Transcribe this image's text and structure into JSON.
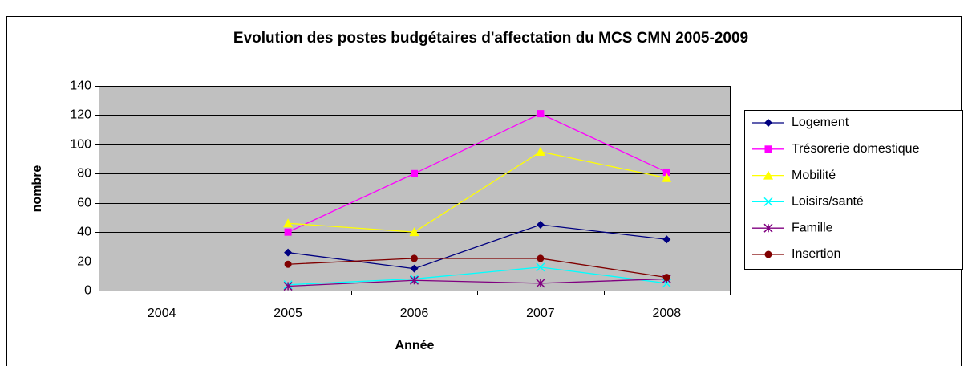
{
  "chart_data": {
    "type": "line",
    "title": "Evolution des postes budgétaires d'affectation du MCS CMN 2005-2009",
    "x_label": "Année",
    "y_label": "nombre",
    "categories": [
      "2004",
      "2005",
      "2006",
      "2007",
      "2008"
    ],
    "series": [
      {
        "name": "Logement",
        "color": "#000080",
        "marker": "diamond",
        "values": [
          null,
          26,
          15,
          45,
          35
        ]
      },
      {
        "name": "Trésorerie domestique",
        "color": "#ff00ff",
        "marker": "square",
        "values": [
          null,
          40,
          80,
          121,
          81
        ]
      },
      {
        "name": "Mobilité",
        "color": "#ffff00",
        "marker": "triangle",
        "values": [
          null,
          46,
          40,
          95,
          77
        ]
      },
      {
        "name": "Loisirs/santé",
        "color": "#00ffff",
        "marker": "x",
        "values": [
          null,
          4,
          8,
          16,
          5
        ]
      },
      {
        "name": "Famille",
        "color": "#800080",
        "marker": "star",
        "values": [
          null,
          3,
          7,
          5,
          8
        ]
      },
      {
        "name": "Insertion",
        "color": "#800000",
        "marker": "circle",
        "values": [
          null,
          18,
          22,
          22,
          9
        ]
      }
    ],
    "ylim": [
      0,
      140
    ],
    "yticks": [
      0,
      20,
      40,
      60,
      80,
      100,
      120,
      140
    ],
    "grid": true,
    "legend": "right",
    "plot_background": "#c0c0c0"
  }
}
